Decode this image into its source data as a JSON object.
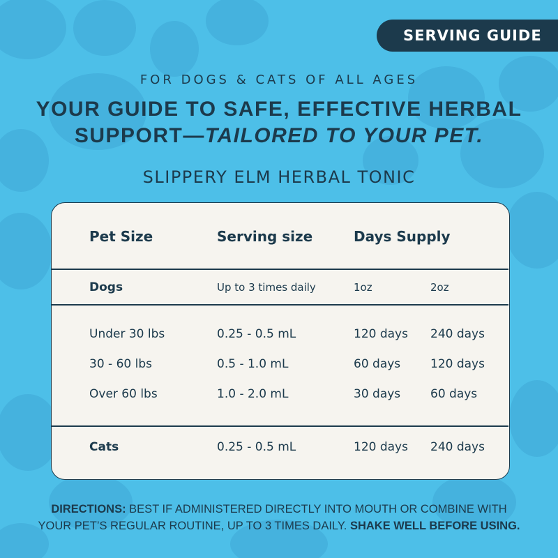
{
  "badge": "SERVING GUIDE",
  "eyebrow": "FOR DOGS & CATS OF ALL AGES",
  "headline": {
    "line1": "YOUR GUIDE TO SAFE, EFFECTIVE HERBAL",
    "line2_plain": "SUPPORT—",
    "line2_italic": "TAILORED TO YOUR PET."
  },
  "product": "SLIPPERY ELM HERBAL TONIC",
  "table": {
    "header": [
      "Pet Size",
      "Serving size",
      "Days Supply"
    ],
    "dogs_row": [
      "Dogs",
      "Up to 3 times daily",
      "1oz",
      "2oz"
    ],
    "dog_rows": [
      [
        "Under 30 lbs",
        "0.25 - 0.5 mL",
        "120 days",
        "240 days"
      ],
      [
        "30 - 60 lbs",
        "0.5 - 1.0 mL",
        "60 days",
        "120 days"
      ],
      [
        "Over 60 lbs",
        "1.0 - 2.0 mL",
        "30 days",
        "60 days"
      ]
    ],
    "cats_row": [
      "Cats",
      "0.25 - 0.5 mL",
      "120 days",
      "240 days"
    ]
  },
  "directions": {
    "label": "DIRECTIONS:",
    "line1": "BEST IF ADMINISTERED DIRECTLY INTO MOUTH OR COMBINE WITH",
    "line2": "YOUR PET’S REGULAR ROUTINE, UP TO 3 TIMES DAILY.",
    "emphasis": "SHAKE WELL BEFORE USING."
  }
}
